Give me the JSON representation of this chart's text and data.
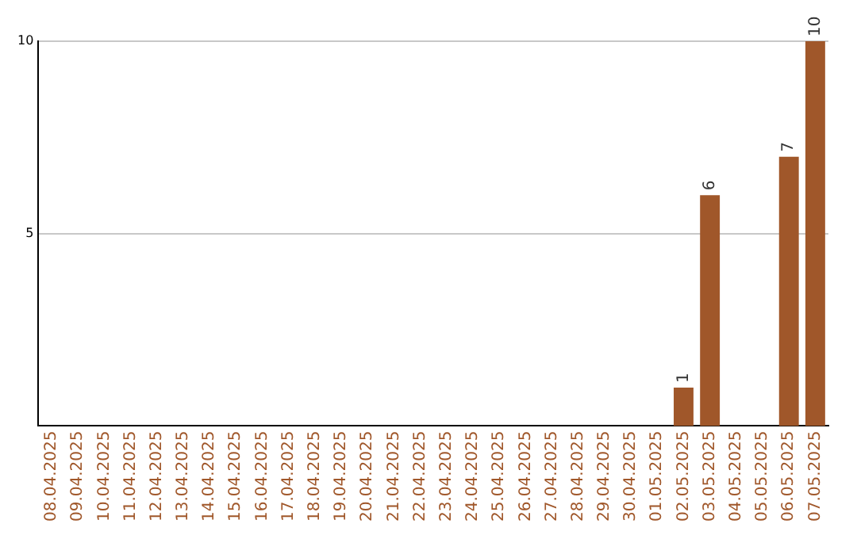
{
  "chart_data": {
    "type": "bar",
    "categories": [
      "08.04.2025",
      "09.04.2025",
      "10.04.2025",
      "11.04.2025",
      "12.04.2025",
      "13.04.2025",
      "14.04.2025",
      "15.04.2025",
      "16.04.2025",
      "17.04.2025",
      "18.04.2025",
      "19.04.2025",
      "20.04.2025",
      "21.04.2025",
      "22.04.2025",
      "23.04.2025",
      "24.04.2025",
      "25.04.2025",
      "26.04.2025",
      "27.04.2025",
      "28.04.2025",
      "29.04.2025",
      "30.04.2025",
      "01.05.2025",
      "02.05.2025",
      "03.05.2025",
      "04.05.2025",
      "05.05.2025",
      "06.05.2025",
      "07.05.2025"
    ],
    "values": [
      0,
      0,
      0,
      0,
      0,
      0,
      0,
      0,
      0,
      0,
      0,
      0,
      0,
      0,
      0,
      0,
      0,
      0,
      0,
      0,
      0,
      0,
      0,
      0,
      1,
      6,
      0,
      0,
      7,
      10
    ],
    "value_labels": [
      null,
      null,
      null,
      null,
      null,
      null,
      null,
      null,
      null,
      null,
      null,
      null,
      null,
      null,
      null,
      null,
      null,
      null,
      null,
      null,
      null,
      null,
      null,
      null,
      "1",
      "6",
      null,
      null,
      "7",
      "10"
    ],
    "color": "#a0572a",
    "ylim": [
      0,
      10
    ],
    "yticks": [
      5,
      10
    ],
    "grid": "y",
    "legend": false
  }
}
